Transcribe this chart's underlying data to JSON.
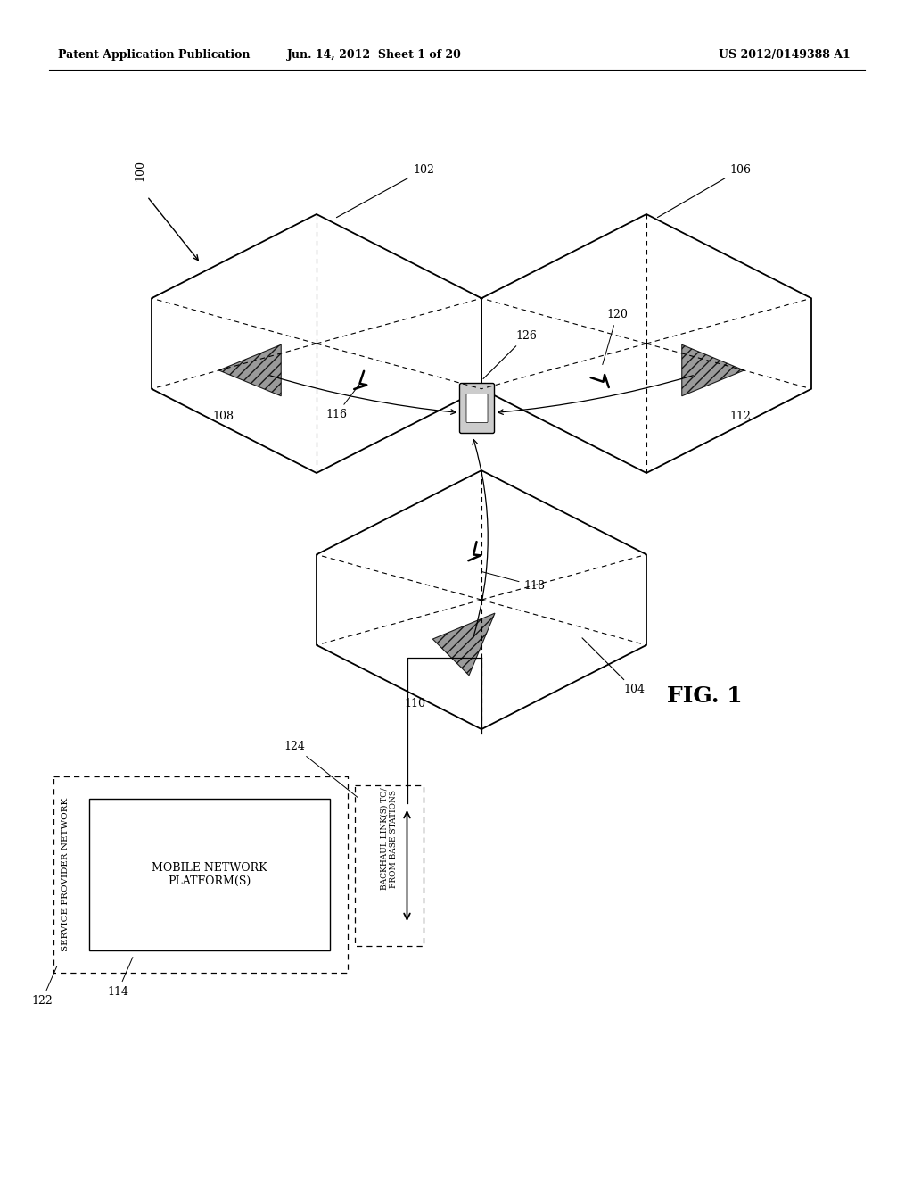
{
  "bg_color": "#ffffff",
  "header_left": "Patent Application Publication",
  "header_center": "Jun. 14, 2012  Sheet 1 of 20",
  "header_right": "US 2012/0149388 A1",
  "fig_label": "FIG. 1",
  "ref_100": "100",
  "ref_102": "102",
  "ref_104": "104",
  "ref_106": "106",
  "ref_108": "108",
  "ref_110": "110",
  "ref_112": "112",
  "ref_114": "114",
  "ref_116": "116",
  "ref_118": "118",
  "ref_120": "120",
  "ref_122": "122",
  "ref_124": "124",
  "ref_126": "126",
  "label_backhaul": "BACKHAUL LINK(S) TO/\nFROM BASE STATIONS",
  "label_mobile": "MOBILE NETWORK\nPLATFORM(S)",
  "label_service": "SERVICE PROVIDER NETWORK"
}
